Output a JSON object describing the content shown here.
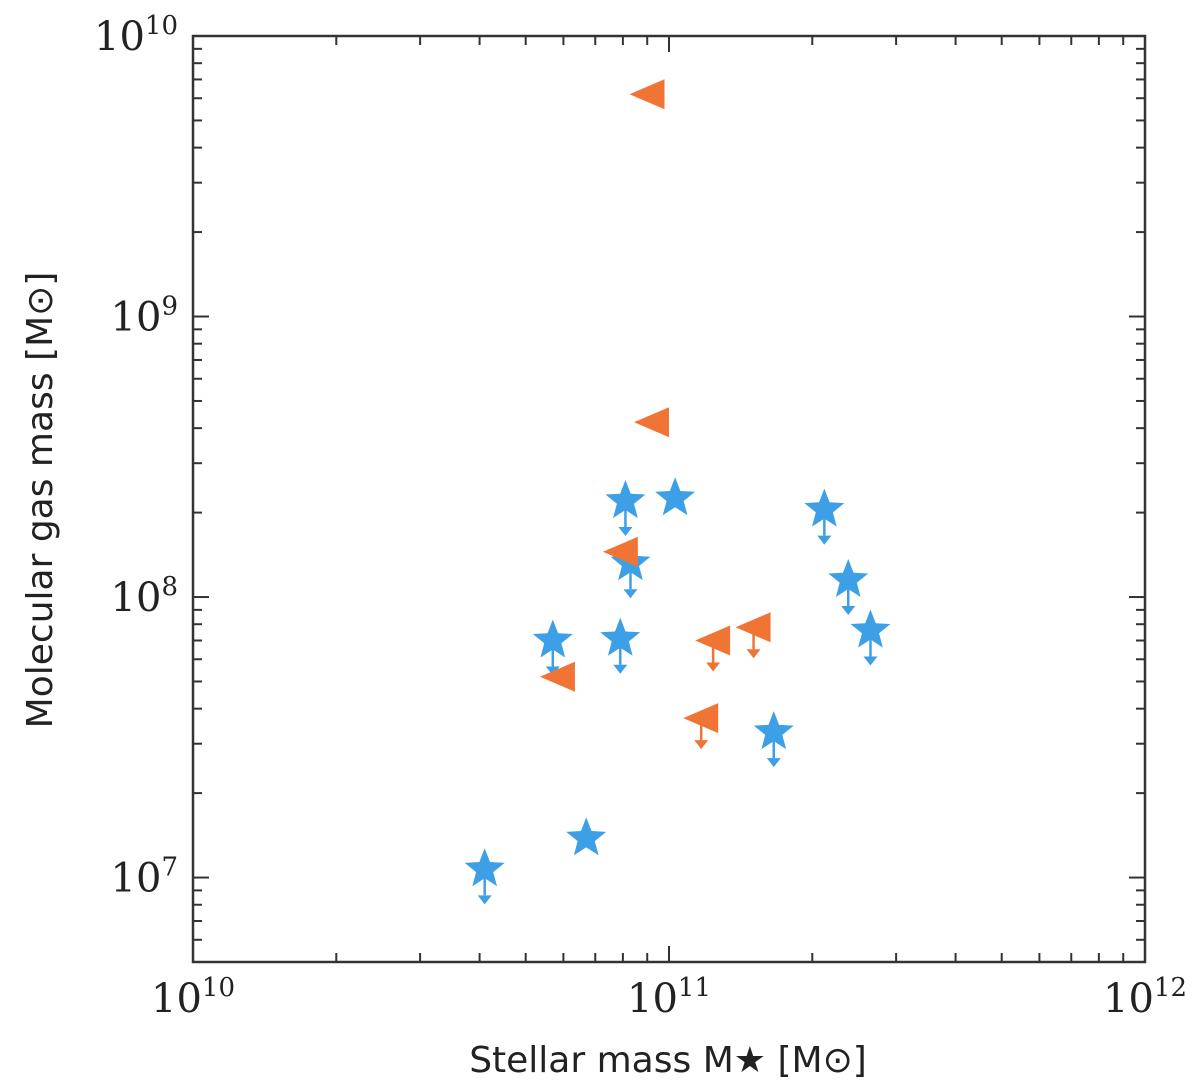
{
  "chart_data": {
    "type": "scatter",
    "xlabel": "Stellar mass M★ [M⊙]",
    "ylabel": "Molecular gas mass [M⊙]",
    "x_scale": "log",
    "y_scale": "log",
    "xlim": [
      10000000000.0,
      1000000000000.0
    ],
    "ylim": [
      5000000.0,
      10000000000.0
    ],
    "grid": false,
    "legend": "none",
    "x_tick_labels": [
      {
        "value": 10000000000.0,
        "base": "10",
        "exp": "10"
      },
      {
        "value": 100000000000.0,
        "base": "10",
        "exp": "11"
      },
      {
        "value": 1000000000000.0,
        "base": "10",
        "exp": "12"
      }
    ],
    "y_tick_labels": [
      {
        "value": 10000000.0,
        "base": "10",
        "exp": "7"
      },
      {
        "value": 100000000.0,
        "base": "10",
        "exp": "8"
      },
      {
        "value": 1000000000.0,
        "base": "10",
        "exp": "9"
      },
      {
        "value": 10000000000.0,
        "base": "10",
        "exp": "10"
      }
    ],
    "series": [
      {
        "marker": "star",
        "color": "#3d9fe6",
        "points": [
          {
            "x": 41000000000.0,
            "y": 10700000.0,
            "upper_limit": true
          },
          {
            "x": 57000000000.0,
            "y": 70000000.0,
            "upper_limit": true
          },
          {
            "x": 67000000000.0,
            "y": 13800000.0,
            "upper_limit": false
          },
          {
            "x": 79000000000.0,
            "y": 71000000.0,
            "upper_limit": true
          },
          {
            "x": 81000000000.0,
            "y": 220000000.0,
            "upper_limit": true
          },
          {
            "x": 83000000000.0,
            "y": 132000000.0,
            "upper_limit": true
          },
          {
            "x": 103000000000.0,
            "y": 225000000.0,
            "upper_limit": false
          },
          {
            "x": 166000000000.0,
            "y": 33000000.0,
            "upper_limit": true
          },
          {
            "x": 212000000000.0,
            "y": 205000000.0,
            "upper_limit": true
          },
          {
            "x": 238000000000.0,
            "y": 115000000.0,
            "upper_limit": true
          },
          {
            "x": 265000000000.0,
            "y": 76000000.0,
            "upper_limit": true
          }
        ]
      },
      {
        "marker": "triangle-left",
        "color": "#f07535",
        "points": [
          {
            "x": 91000000000.0,
            "y": 6200000000.0,
            "upper_limit": false
          },
          {
            "x": 93000000000.0,
            "y": 420000000.0,
            "upper_limit": false
          },
          {
            "x": 80000000000.0,
            "y": 145000000.0,
            "upper_limit": false
          },
          {
            "x": 59000000000.0,
            "y": 52000000.0,
            "upper_limit": false
          },
          {
            "x": 125000000000.0,
            "y": 70000000.0,
            "upper_limit": true
          },
          {
            "x": 152000000000.0,
            "y": 78000000.0,
            "upper_limit": true
          },
          {
            "x": 118000000000.0,
            "y": 37000000.0,
            "upper_limit": true
          }
        ]
      }
    ]
  }
}
